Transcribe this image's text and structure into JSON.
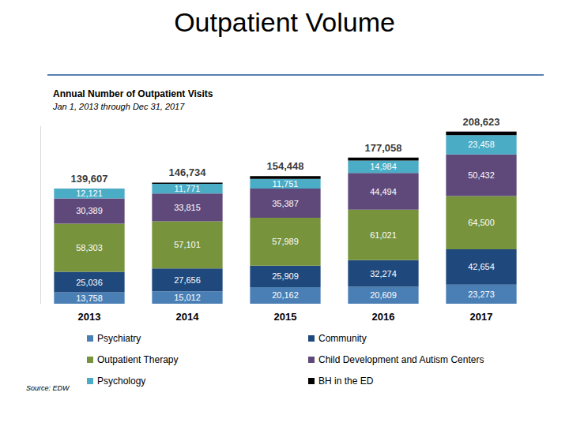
{
  "chart_data": {
    "type": "bar",
    "title": "Outpatient Volume",
    "subtitle": "Annual Number of Outpatient Visits",
    "note": "Jan 1, 2013 through Dec 31, 2017",
    "source": "Source: EDW",
    "categories": [
      "2013",
      "2014",
      "2015",
      "2016",
      "2017"
    ],
    "stacked": true,
    "data_labels": true,
    "tick_labels": "x",
    "grid": false,
    "legend": "bottom",
    "ylim": [
      0,
      215000
    ],
    "series": [
      {
        "name": "Psychiatry",
        "color": "#4a7fb5",
        "values": [
          13758,
          15012,
          20162,
          20609,
          23273
        ],
        "value_labels": [
          "13,758",
          "15,012",
          "20,162",
          "20,609",
          "23,273"
        ]
      },
      {
        "name": "Community",
        "color": "#1f497d",
        "values": [
          25036,
          27656,
          25909,
          32274,
          42654
        ],
        "value_labels": [
          "25,036",
          "27,656",
          "25,909",
          "32,274",
          "42,654"
        ]
      },
      {
        "name": "Outpatient Therapy",
        "color": "#77933c",
        "values": [
          58303,
          57101,
          57989,
          61021,
          64500
        ],
        "value_labels": [
          "58,303",
          "57,101",
          "57,989",
          "61,021",
          "64,500"
        ]
      },
      {
        "name": "Child Development and Autism Centers",
        "color": "#5f497a",
        "values": [
          30389,
          33815,
          35387,
          44494,
          50432
        ],
        "value_labels": [
          "30,389",
          "33,815",
          "35,387",
          "44,494",
          "50,432"
        ]
      },
      {
        "name": "Psychology",
        "color": "#4bacc6",
        "values": [
          12121,
          11771,
          11751,
          14984,
          23458
        ],
        "value_labels": [
          "12,121",
          "11,771",
          "11,751",
          "14,984",
          "23,458"
        ]
      },
      {
        "name": "BH in the ED",
        "color": "#000000",
        "data_labels": false,
        "values": [
          0,
          1379,
          3250,
          3676,
          4306
        ]
      }
    ],
    "totals": [
      139607,
      146734,
      154448,
      177058,
      208623
    ],
    "total_labels": [
      "139,607",
      "146,734",
      "154,448",
      "177,058",
      "208,623"
    ]
  }
}
